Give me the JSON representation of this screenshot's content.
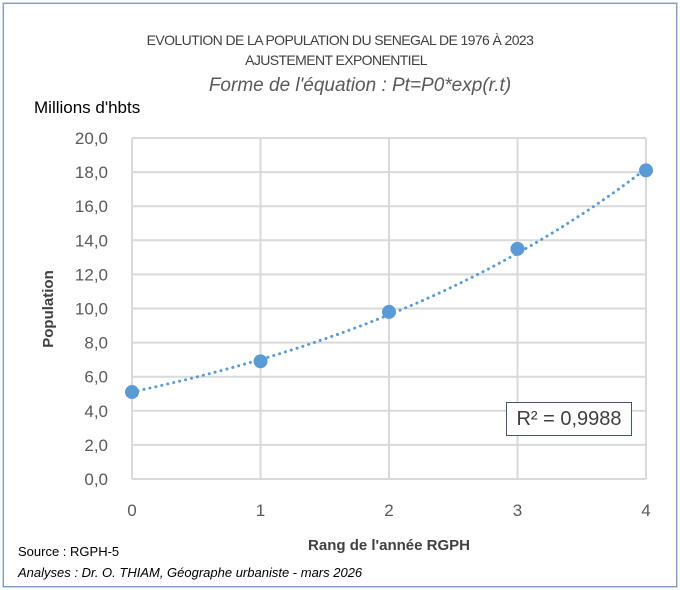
{
  "chart_data": {
    "type": "scatter",
    "title": "EVOLUTION DE LA POPULATION DU SENEGAL DE 1976 À 2023",
    "subtitle": "AJUSTEMENT EXPONENTIEL",
    "equation_form": "Forme de l'équation : Pt=P0*exp(r.t)",
    "unit_label": "Millions d'hbts",
    "xlabel": "Rang de l'année RGPH",
    "ylabel": "Population",
    "xlim": [
      0,
      4
    ],
    "ylim": [
      0,
      20
    ],
    "x_ticks": [
      "0",
      "1",
      "2",
      "3",
      "4"
    ],
    "y_ticks": [
      "0,0",
      "2,0",
      "4,0",
      "6,0",
      "8,0",
      "10,0",
      "12,0",
      "14,0",
      "16,0",
      "18,0",
      "20,0"
    ],
    "grid": true,
    "series": [
      {
        "name": "Population",
        "x": [
          0,
          1,
          2,
          3,
          4
        ],
        "y": [
          5.1,
          6.9,
          9.8,
          13.5,
          18.1
        ],
        "color": "#5b9bd5"
      }
    ],
    "trendline": {
      "type": "exponential",
      "p0": 5.1,
      "r": 0.318,
      "style": "dotted",
      "color": "#5b9bd5"
    },
    "r_squared_label": "R² = 0,9988"
  },
  "footer": {
    "source": "Source : RGPH-5",
    "analyses": "Analyses : Dr. O. THIAM, Géographe urbaniste - mars 2026"
  }
}
